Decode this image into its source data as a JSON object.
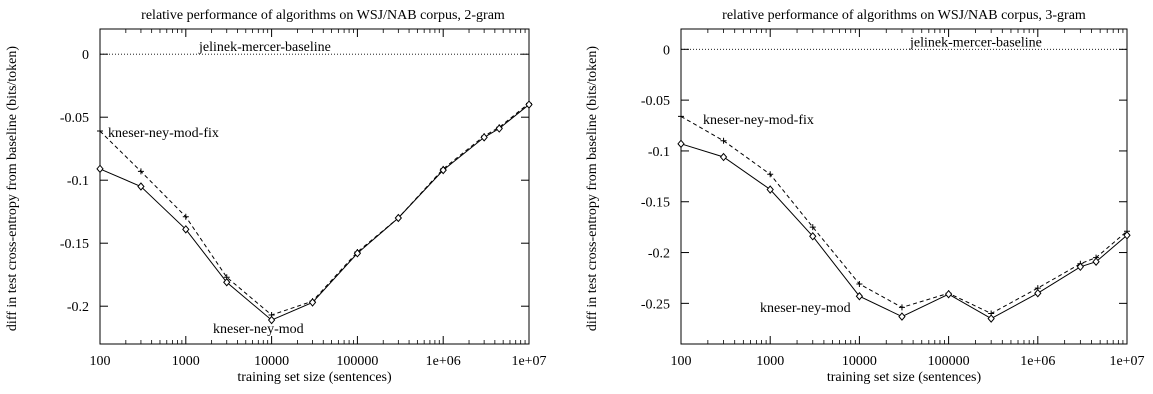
{
  "chart_data": [
    {
      "type": "line",
      "title": "relative performance of algorithms on WSJ/NAB corpus, 2-gram",
      "xlabel": "training set size (sentences)",
      "ylabel": "diff in test cross-entropy from baseline (bits/token)",
      "xscale": "log",
      "xlim": [
        100,
        10000000
      ],
      "ylim": [
        -0.23,
        0.02
      ],
      "x_ticks": [
        100,
        1000,
        10000,
        100000,
        1000000,
        10000000
      ],
      "x_tick_labels": [
        "100",
        "1000",
        "10000",
        "100000",
        "1e+06",
        "1e+07"
      ],
      "y_ticks": [
        0,
        -0.05,
        -0.1,
        -0.15,
        -0.2
      ],
      "y_tick_labels": [
        "0",
        "-0.05",
        "-0.1",
        "-0.15",
        "-0.2"
      ],
      "baseline": {
        "label": "jelinek-mercer-baseline",
        "value": 0
      },
      "grid": false,
      "series": [
        {
          "name": "kneser-ney-mod-fix",
          "style": "dashed",
          "marker": "plus",
          "x": [
            100,
            300,
            1000,
            3000,
            10000,
            30000,
            100000,
            300000,
            1000000,
            3000000,
            4500000,
            10000000
          ],
          "y": [
            -0.061,
            -0.093,
            -0.129,
            -0.177,
            -0.207,
            -0.196,
            -0.157,
            -0.13,
            -0.091,
            -0.065,
            -0.058,
            -0.039
          ]
        },
        {
          "name": "kneser-ney-mod",
          "style": "solid",
          "marker": "diamond",
          "x": [
            100,
            300,
            1000,
            3000,
            10000,
            30000,
            100000,
            300000,
            1000000,
            3000000,
            4500000,
            10000000
          ],
          "y": [
            -0.091,
            -0.105,
            -0.139,
            -0.181,
            -0.211,
            -0.197,
            -0.158,
            -0.13,
            -0.092,
            -0.066,
            -0.059,
            -0.04
          ]
        }
      ]
    },
    {
      "type": "line",
      "title": "relative performance of algorithms on WSJ/NAB corpus, 3-gram",
      "xlabel": "training set size (sentences)",
      "ylabel": "diff in test cross-entropy from baseline (bits/token)",
      "xscale": "log",
      "xlim": [
        100,
        10000000
      ],
      "ylim": [
        -0.29,
        0.02
      ],
      "x_ticks": [
        100,
        1000,
        10000,
        100000,
        1000000,
        10000000
      ],
      "x_tick_labels": [
        "100",
        "1000",
        "10000",
        "100000",
        "1e+06",
        "1e+07"
      ],
      "y_ticks": [
        0,
        -0.05,
        -0.1,
        -0.15,
        -0.2,
        -0.25
      ],
      "y_tick_labels": [
        "0",
        "-0.05",
        "-0.1",
        "-0.15",
        "-0.2",
        "-0.25"
      ],
      "baseline": {
        "label": "jelinek-mercer-baseline",
        "value": 0
      },
      "grid": false,
      "series": [
        {
          "name": "kneser-ney-mod-fix",
          "style": "dashed",
          "marker": "plus",
          "x": [
            100,
            300,
            1000,
            3000,
            10000,
            30000,
            100000,
            300000,
            1000000,
            3000000,
            4500000,
            10000000
          ],
          "y": [
            -0.066,
            -0.09,
            -0.123,
            -0.175,
            -0.231,
            -0.254,
            -0.24,
            -0.26,
            -0.235,
            -0.211,
            -0.205,
            -0.179
          ]
        },
        {
          "name": "kneser-ney-mod",
          "style": "solid",
          "marker": "diamond",
          "x": [
            100,
            300,
            1000,
            3000,
            10000,
            30000,
            100000,
            300000,
            1000000,
            3000000,
            4500000,
            10000000
          ],
          "y": [
            -0.093,
            -0.106,
            -0.138,
            -0.184,
            -0.243,
            -0.263,
            -0.241,
            -0.265,
            -0.24,
            -0.214,
            -0.209,
            -0.183
          ]
        }
      ]
    }
  ]
}
